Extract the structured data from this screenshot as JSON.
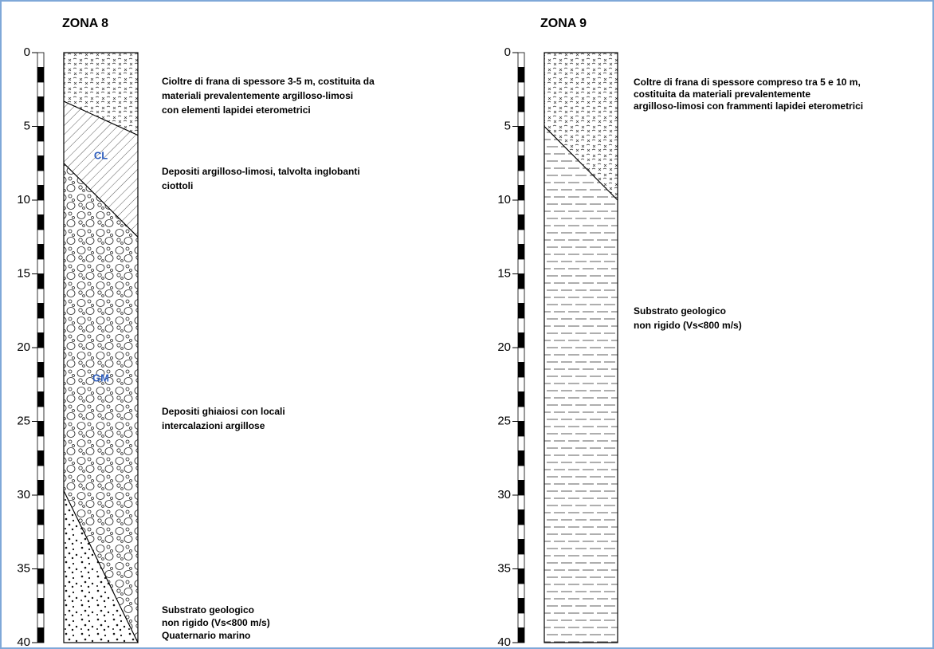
{
  "zones": [
    {
      "title": "ZONA 8",
      "scale": [
        0,
        5,
        10,
        15,
        20,
        25,
        30,
        35,
        40
      ],
      "layers": [
        {
          "description": [
            "Cioltre di frana di spessore 3-5 m, costituita da",
            "materiali prevalentemente argilloso-limosi",
            "con elementi lapidei eterometrici"
          ]
        },
        {
          "code": "CL",
          "description": [
            "Depositi argilloso-limosi, talvolta inglobanti",
            "ciottoli"
          ]
        },
        {
          "code": "GM",
          "description": [
            "Depositi ghiaiosi con locali",
            "intercalazioni argillose"
          ]
        },
        {
          "description": [
            "Substrato geologico",
            "non rigido (Vs<800 m/s)",
            "Quaternario marino"
          ]
        }
      ]
    },
    {
      "title": "ZONA 9",
      "scale": [
        0,
        5,
        10,
        15,
        20,
        25,
        30,
        35,
        40
      ],
      "layers": [
        {
          "description": [
            "Coltre di frana di spessore compreso tra 5 e 10 m,",
            "costituita da materiali prevalentemente",
            "argilloso-limosi con frammenti lapidei eterometrici"
          ]
        },
        {
          "description": [
            "Substrato geologico",
            "non rigido (Vs<800 m/s)"
          ]
        }
      ]
    }
  ]
}
